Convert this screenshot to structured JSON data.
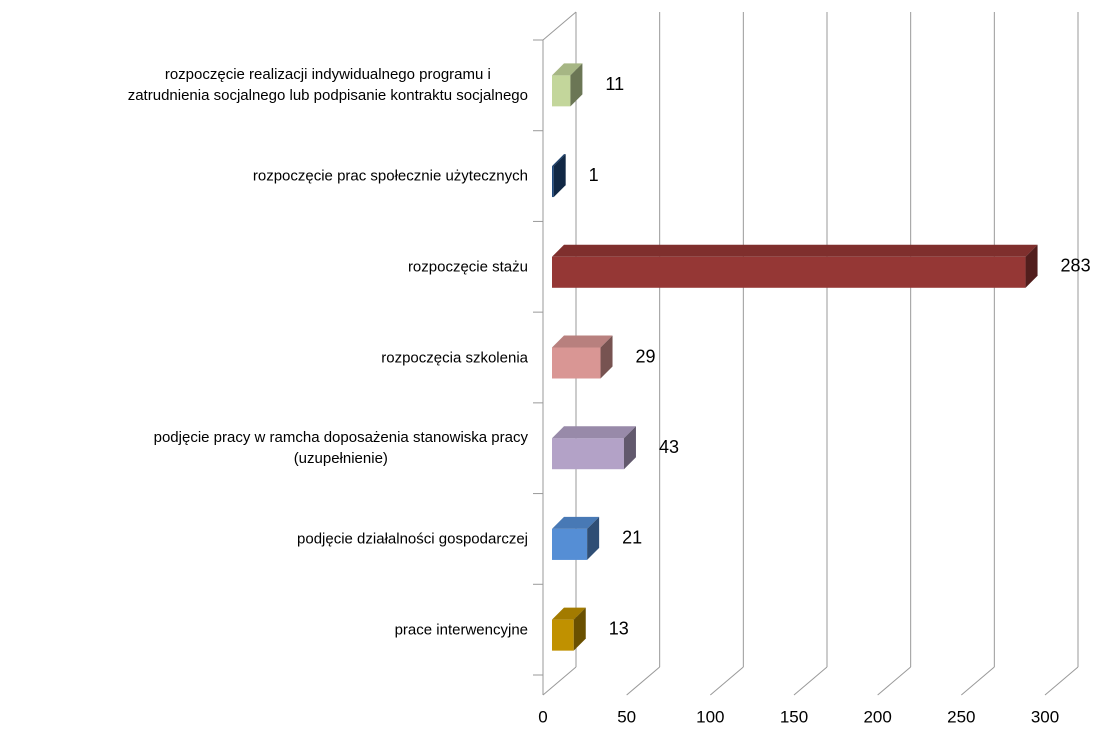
{
  "chart_data": {
    "type": "bar3d_horizontal",
    "categories": [
      "rozpoczęcie realizacji indywidualnego programu i\nzatrudnienia socjalnego lub podpisanie kontraktu socjalnego",
      "rozpoczęcie prac społecznie użytecznych",
      "rozpoczęcie stażu",
      "rozpoczęcia szkolenia",
      "podjęcie pracy w ramcha doposażenia stanowiska pracy\n(uzupełnienie)",
      "podjęcie działalności gospodarczej",
      "prace interwencyjne"
    ],
    "values": [
      11,
      1,
      283,
      29,
      43,
      21,
      13
    ],
    "colors": [
      "#c3d69b",
      "#1f497d",
      "#953735",
      "#d99694",
      "#b3a2c7",
      "#558ed5",
      "#c09100"
    ],
    "xlim": [
      0,
      300
    ],
    "xticks": [
      0,
      50,
      100,
      150,
      200,
      250,
      300
    ],
    "grid": true
  }
}
